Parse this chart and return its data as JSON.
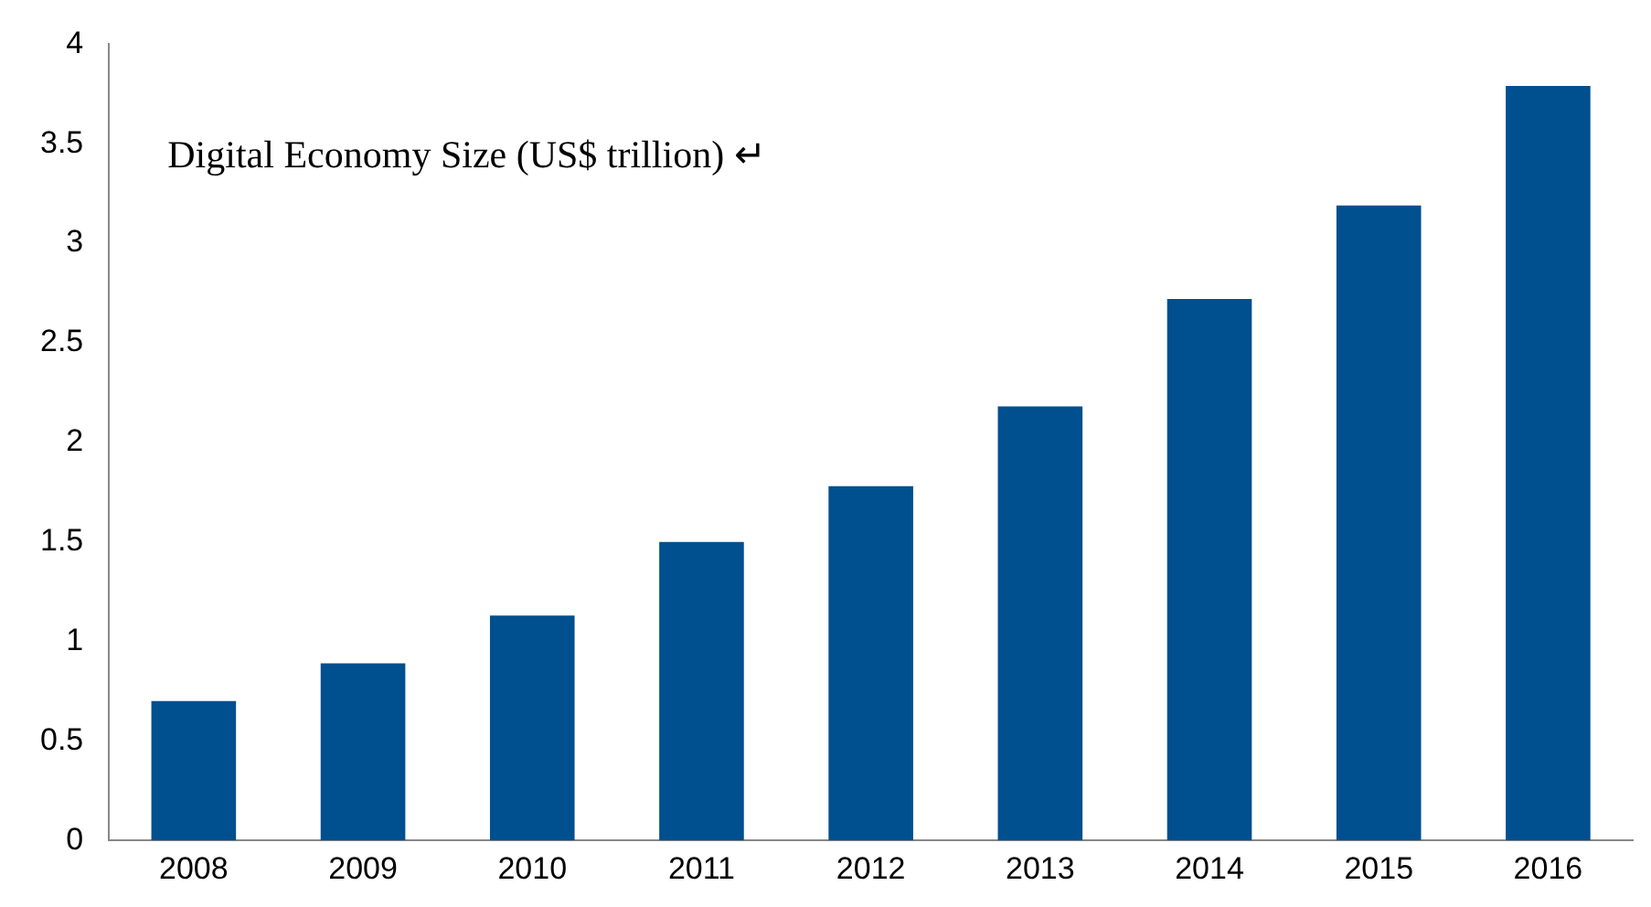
{
  "chart_data": {
    "type": "bar",
    "title": "Digital Economy Size (US$ trillion) ↵",
    "categories": [
      "2008",
      "2009",
      "2010",
      "2011",
      "2012",
      "2013",
      "2014",
      "2015",
      "2016"
    ],
    "values": [
      0.7,
      0.89,
      1.13,
      1.5,
      1.78,
      2.18,
      2.72,
      3.19,
      3.79
    ],
    "color": "#004f8e",
    "ylim": [
      0,
      4
    ],
    "yticks": [
      0,
      0.5,
      1,
      1.5,
      2,
      2.5,
      3,
      3.5,
      4
    ],
    "grid": false,
    "legend": false
  }
}
